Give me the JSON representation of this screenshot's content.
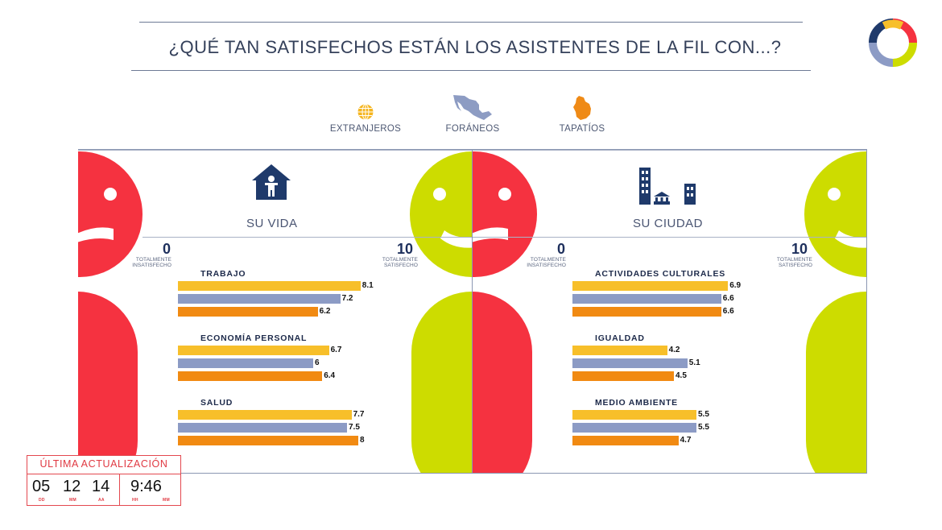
{
  "header": {
    "title": "¿QUÉ TAN SATISFECHOS ESTÁN LOS ASISTENTES DE LA FIL CON...?"
  },
  "legend": [
    {
      "label": "EXTRANJEROS",
      "icon": "globe-icon",
      "color": "#f5b51f"
    },
    {
      "label": "FORÁNEOS",
      "icon": "mexico-map-icon",
      "color": "#8d9cc3"
    },
    {
      "label": "TAPATÍOS",
      "icon": "jalisco-map-icon",
      "color": "#ef8a16"
    }
  ],
  "colors": {
    "red_face": "#f53240",
    "green_face": "#cddc00",
    "extranjeros": "#f7bf2a",
    "foraneos": "#8c9bc5",
    "tapatios": "#f18a12",
    "navy": "#1f3a6b"
  },
  "scale": {
    "min": "0",
    "max": "10",
    "min_label_1": "TOTALMENTE",
    "min_label_2": "INSATISFECHO",
    "max_label_1": "TOTALMENTE",
    "max_label_2": "SATISFECHO"
  },
  "panels": [
    {
      "title": "SU VIDA",
      "icon": "house-family-icon"
    },
    {
      "title": "SU CIUDAD",
      "icon": "city-buildings-icon"
    }
  ],
  "chart_data": [
    {
      "type": "bar",
      "title": "SU VIDA",
      "orientation": "horizontal",
      "xlim": [
        0,
        10
      ],
      "categories": [
        "TRABAJO",
        "ECONOMÍA PERSONAL",
        "SALUD"
      ],
      "series": [
        {
          "name": "EXTRANJEROS",
          "values": [
            8.1,
            6.7,
            7.7
          ]
        },
        {
          "name": "FORÁNEOS",
          "values": [
            7.2,
            6,
            7.5
          ]
        },
        {
          "name": "TAPATÍOS",
          "values": [
            6.2,
            6.4,
            8
          ]
        }
      ],
      "value_labels": [
        [
          "8.1",
          "7.2",
          "6.2"
        ],
        [
          "6.7",
          "6",
          "6.4"
        ],
        [
          "7.7",
          "7.5",
          "8"
        ]
      ]
    },
    {
      "type": "bar",
      "title": "SU CIUDAD",
      "orientation": "horizontal",
      "xlim": [
        0,
        10
      ],
      "categories": [
        "ACTIVIDADES CULTURALES",
        "IGUALDAD",
        "MEDIO AMBIENTE"
      ],
      "series": [
        {
          "name": "EXTRANJEROS",
          "values": [
            6.9,
            4.2,
            5.5
          ]
        },
        {
          "name": "FORÁNEOS",
          "values": [
            6.6,
            5.1,
            5.5
          ]
        },
        {
          "name": "TAPATÍOS",
          "values": [
            6.6,
            4.5,
            4.7
          ]
        }
      ],
      "value_labels": [
        [
          "6.9",
          "6.6",
          "6.6"
        ],
        [
          "4.2",
          "5.1",
          "4.5"
        ],
        [
          "5.5",
          "5.5",
          "4.7"
        ]
      ]
    }
  ],
  "update": {
    "title": "ÚLTIMA ACTUALIZACIÓN",
    "day": "05",
    "month": "12",
    "year": "14",
    "time": "9:46",
    "day_unit": "DD",
    "month_unit": "MM",
    "year_unit": "AA",
    "hour_unit": "HH",
    "minute_unit": "MM"
  }
}
